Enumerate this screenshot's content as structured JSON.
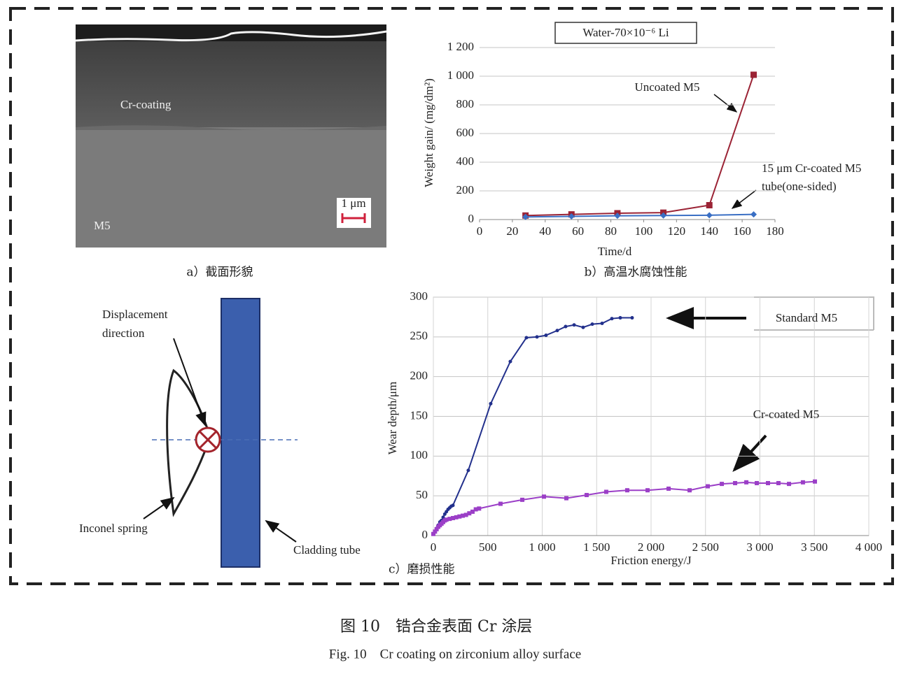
{
  "panel_a": {
    "labels": [
      "Cr-coating",
      "M5"
    ],
    "scale_bar": "1 μm",
    "caption": "a）截面形貌"
  },
  "panel_b": {
    "caption": "b）高温水腐蚀性能"
  },
  "panel_c": {
    "caption": "c）磨损性能"
  },
  "diagram": {
    "labels": [
      "Displacement",
      "direction",
      "Inconel spring",
      "Cladding tube"
    ]
  },
  "figure": {
    "title_cn": "图 10　锆合金表面 Cr 涂层",
    "title_en": "Fig. 10　Cr coating on zirconium alloy surface"
  },
  "chart_data": [
    {
      "type": "line",
      "title": "Water-70×10⁻⁶ Li",
      "x_label": "Time/d",
      "y_label": "Weight gain/ (mg/dm²)",
      "x": [
        28,
        56,
        84,
        112,
        140,
        167
      ],
      "series": [
        {
          "name": "Uncoated M5",
          "color": "#9b2335",
          "marker": "square",
          "values": [
            28,
            36,
            44,
            48,
            100,
            1010
          ]
        },
        {
          "name": "15 μm Cr-coated M5 tube(one-sided)",
          "color": "#3a6fc4",
          "marker": "diamond",
          "values": [
            18,
            22,
            26,
            28,
            30,
            36
          ]
        }
      ],
      "annotations": [
        "Uncoated M5",
        "15 μm Cr-coated M5",
        "tube(one-sided)"
      ],
      "xlim": [
        0,
        180
      ],
      "xticks": [
        0,
        20,
        40,
        60,
        80,
        100,
        120,
        140,
        160,
        180
      ],
      "ylim": [
        0,
        1200
      ],
      "yticks": [
        0,
        200,
        400,
        600,
        800,
        {
          "value": 1000,
          "label": "1 000"
        },
        {
          "value": 1200,
          "label": "1 200"
        }
      ],
      "grid": "y"
    },
    {
      "type": "line",
      "x_label": "Friction energy/J",
      "y_label": "Wear depth/μm",
      "series": [
        {
          "name": "Standard M5",
          "color": "#22308c",
          "marker": "circle",
          "x": [
            0,
            15,
            30,
            45,
            60,
            75,
            90,
            105,
            120,
            135,
            150,
            165,
            180,
            321,
            527,
            707,
            855,
            952,
            1035,
            1138,
            1215,
            1293,
            1376,
            1460,
            1550,
            1640,
            1717,
            1826
          ],
          "values": [
            2,
            5,
            9,
            13,
            17,
            19,
            23,
            27,
            30,
            33,
            35,
            37,
            38,
            82,
            166,
            219,
            249,
            250,
            252,
            258,
            263,
            265,
            262,
            266,
            267,
            273,
            274,
            274
          ]
        },
        {
          "name": "Cr-coated M5",
          "color": "#9b3fc7",
          "marker": "square",
          "x": [
            0,
            15,
            30,
            45,
            60,
            75,
            90,
            105,
            120,
            150,
            180,
            210,
            240,
            270,
            300,
            330,
            360,
            390,
            420,
            617,
            817,
            1016,
            1222,
            1408,
            1588,
            1781,
            1968,
            2161,
            2354,
            2521,
            2650,
            2772,
            2875,
            2971,
            3074,
            3170,
            3267,
            3395,
            3505
          ],
          "values": [
            2,
            5,
            8,
            11,
            13,
            15,
            17,
            19,
            20,
            21,
            22,
            23,
            24,
            25,
            26,
            28,
            30,
            33,
            34,
            40,
            45,
            49,
            47,
            51,
            55,
            57,
            57,
            59,
            57,
            62,
            65,
            66,
            67,
            66,
            66,
            66,
            65,
            67,
            68
          ]
        }
      ],
      "annotations": [
        "Standard M5",
        "Cr-coated M5"
      ],
      "xlim": [
        0,
        4000
      ],
      "xticks": [
        0,
        500,
        {
          "value": 1000,
          "label": "1 000"
        },
        {
          "value": 1500,
          "label": "1 500"
        },
        {
          "value": 2000,
          "label": "2 000"
        },
        {
          "value": 2500,
          "label": "2 500"
        },
        {
          "value": 3000,
          "label": "3 000"
        },
        {
          "value": 3500,
          "label": "3 500"
        },
        {
          "value": 4000,
          "label": "4 000"
        }
      ],
      "ylim": [
        0,
        300
      ],
      "yticks": [
        0,
        50,
        100,
        150,
        200,
        250,
        300
      ],
      "grid": "both"
    }
  ]
}
